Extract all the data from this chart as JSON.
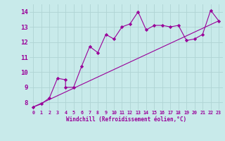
{
  "title": "",
  "xlabel": "Windchill (Refroidissement éolien,°C)",
  "xlim": [
    -0.5,
    23.5
  ],
  "ylim": [
    7.5,
    14.5
  ],
  "yticks": [
    8,
    9,
    10,
    11,
    12,
    13,
    14
  ],
  "xticks": [
    0,
    1,
    2,
    3,
    4,
    5,
    6,
    7,
    8,
    9,
    10,
    11,
    12,
    13,
    14,
    15,
    16,
    17,
    18,
    19,
    20,
    21,
    22,
    23
  ],
  "bg_color": "#c8eaea",
  "grid_color": "#b0d4d4",
  "line_color": "#990099",
  "line1_x": [
    0,
    1,
    2,
    3,
    4,
    4,
    5,
    6,
    7,
    8,
    9,
    10,
    11,
    12,
    13,
    14,
    15,
    16,
    17,
    18,
    19,
    20,
    21,
    22,
    23
  ],
  "line1_y": [
    7.7,
    7.9,
    8.3,
    9.6,
    9.5,
    9.0,
    9.0,
    10.4,
    11.7,
    11.3,
    12.5,
    12.2,
    13.0,
    13.2,
    14.0,
    12.8,
    13.1,
    13.1,
    13.0,
    13.1,
    12.1,
    12.2,
    12.5,
    14.1,
    13.4
  ],
  "line2_x": [
    0,
    23
  ],
  "line2_y": [
    7.7,
    13.4
  ],
  "marker": "D",
  "marker_size": 2.2,
  "linewidth": 0.8,
  "xlabel_fontsize": 5.5,
  "ytick_fontsize": 6.5,
  "xtick_fontsize": 4.8
}
